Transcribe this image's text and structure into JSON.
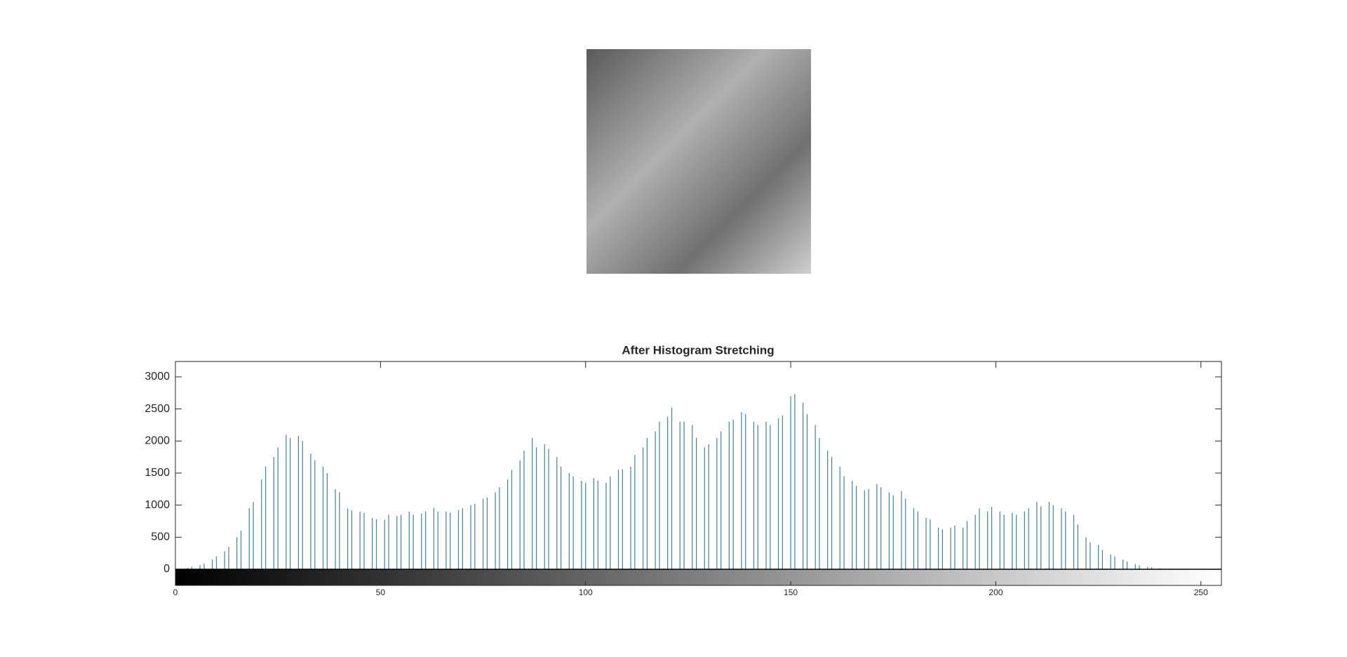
{
  "chart_data": {
    "type": "stem",
    "title": "After Histogram Stretching",
    "x": [
      0,
      1,
      3,
      4,
      6,
      7,
      9,
      10,
      12,
      13,
      15,
      16,
      18,
      19,
      21,
      22,
      24,
      25,
      27,
      28,
      30,
      31,
      33,
      34,
      36,
      37,
      39,
      40,
      42,
      43,
      45,
      46,
      48,
      49,
      51,
      52,
      54,
      55,
      57,
      58,
      60,
      61,
      63,
      64,
      66,
      67,
      69,
      70,
      72,
      73,
      75,
      76,
      78,
      79,
      81,
      82,
      84,
      85,
      87,
      88,
      90,
      91,
      93,
      94,
      96,
      97,
      99,
      100,
      102,
      103,
      105,
      106,
      108,
      109,
      111,
      112,
      114,
      115,
      117,
      118,
      120,
      121,
      123,
      124,
      126,
      127,
      129,
      130,
      132,
      133,
      135,
      136,
      138,
      139,
      141,
      142,
      144,
      145,
      147,
      148,
      150,
      151,
      153,
      154,
      156,
      157,
      159,
      160,
      162,
      163,
      165,
      166,
      168,
      169,
      171,
      172,
      174,
      175,
      177,
      178,
      180,
      181,
      183,
      184,
      186,
      187,
      189,
      190,
      192,
      193,
      195,
      196,
      198,
      199,
      201,
      202,
      204,
      205,
      207,
      208,
      210,
      211,
      213,
      214,
      216,
      217,
      219,
      220,
      222,
      223,
      225,
      226,
      228,
      229,
      231,
      232,
      234,
      235,
      237,
      238,
      240,
      241,
      243,
      244,
      246,
      247,
      249,
      250,
      252,
      253,
      255
    ],
    "values": [
      5,
      10,
      20,
      40,
      60,
      90,
      150,
      200,
      280,
      350,
      500,
      600,
      950,
      1050,
      1400,
      1600,
      1750,
      1900,
      2100,
      2050,
      2080,
      2000,
      1800,
      1700,
      1600,
      1500,
      1250,
      1200,
      950,
      920,
      900,
      880,
      800,
      780,
      770,
      850,
      830,
      850,
      900,
      850,
      870,
      900,
      960,
      900,
      900,
      880,
      920,
      950,
      1000,
      1020,
      1100,
      1120,
      1200,
      1280,
      1400,
      1550,
      1700,
      1850,
      2050,
      1900,
      1950,
      1880,
      1750,
      1600,
      1500,
      1450,
      1380,
      1350,
      1420,
      1380,
      1350,
      1450,
      1550,
      1560,
      1600,
      1780,
      1900,
      2050,
      2150,
      2300,
      2380,
      2520,
      2300,
      2300,
      2250,
      2050,
      1900,
      1950,
      2050,
      2150,
      2300,
      2330,
      2450,
      2420,
      2300,
      2250,
      2300,
      2250,
      2350,
      2400,
      2700,
      2730,
      2600,
      2420,
      2250,
      2050,
      1850,
      1750,
      1600,
      1450,
      1380,
      1300,
      1230,
      1250,
      1330,
      1280,
      1200,
      1150,
      1220,
      1100,
      950,
      900,
      800,
      780,
      650,
      620,
      650,
      680,
      650,
      750,
      850,
      950,
      900,
      970,
      900,
      850,
      880,
      850,
      900,
      950,
      1050,
      980,
      1050,
      1000,
      950,
      900,
      850,
      700,
      500,
      420,
      380,
      300,
      230,
      200,
      150,
      120,
      80,
      60,
      40,
      30,
      15,
      10,
      5,
      5,
      3,
      2,
      1,
      1,
      0,
      0,
      0
    ],
    "color": "#3f7fb0",
    "xlim": [
      0,
      255
    ],
    "xticks": [
      0,
      50,
      100,
      150,
      200,
      250
    ],
    "ylim": [
      0,
      3240
    ],
    "yticks": [
      0,
      500,
      1000,
      1500,
      2000,
      2500,
      3000
    ]
  }
}
